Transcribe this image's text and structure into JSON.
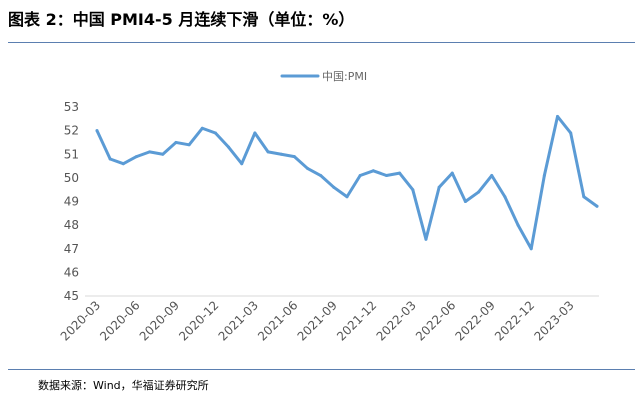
{
  "header": {
    "title": "图表 2：中国 PMI4-5 月连续下滑（单位：%）"
  },
  "footer": {
    "source": "数据来源：Wind，华福证券研究所"
  },
  "chart_data": {
    "type": "line",
    "legend": {
      "position": "top-center"
    },
    "grid": false,
    "ylim": [
      45,
      53
    ],
    "yticks": [
      "45",
      "46",
      "47",
      "48",
      "49",
      "50",
      "51",
      "52",
      "53"
    ],
    "x": [
      "2020-03",
      "2020-04",
      "2020-05",
      "2020-06",
      "2020-07",
      "2020-08",
      "2020-09",
      "2020-10",
      "2020-11",
      "2020-12",
      "2021-01",
      "2021-02",
      "2021-03",
      "2021-04",
      "2021-05",
      "2021-06",
      "2021-07",
      "2021-08",
      "2021-09",
      "2021-10",
      "2021-11",
      "2021-12",
      "2022-01",
      "2022-02",
      "2022-03",
      "2022-04",
      "2022-05",
      "2022-06",
      "2022-07",
      "2022-08",
      "2022-09",
      "2022-10",
      "2022-11",
      "2022-12",
      "2023-01",
      "2023-02",
      "2023-03",
      "2023-04",
      "2023-05"
    ],
    "xtick_labels": [
      "2020-03",
      "2020-06",
      "2020-09",
      "2020-12",
      "2021-03",
      "2021-06",
      "2021-09",
      "2021-12",
      "2022-03",
      "2022-06",
      "2022-09",
      "2022-12",
      "2023-03"
    ],
    "series": [
      {
        "name": "中国:PMI",
        "color": "#5b9bd5",
        "values": [
          52.0,
          50.8,
          50.6,
          50.9,
          51.1,
          51.0,
          51.5,
          51.4,
          52.1,
          51.9,
          51.3,
          50.6,
          51.9,
          51.1,
          51.0,
          50.9,
          50.4,
          50.1,
          49.6,
          49.2,
          50.1,
          50.3,
          50.1,
          50.2,
          49.5,
          47.4,
          49.6,
          50.2,
          49.0,
          49.4,
          50.1,
          49.2,
          48.0,
          47.0,
          50.1,
          52.6,
          51.9,
          49.2,
          48.8
        ]
      }
    ]
  }
}
